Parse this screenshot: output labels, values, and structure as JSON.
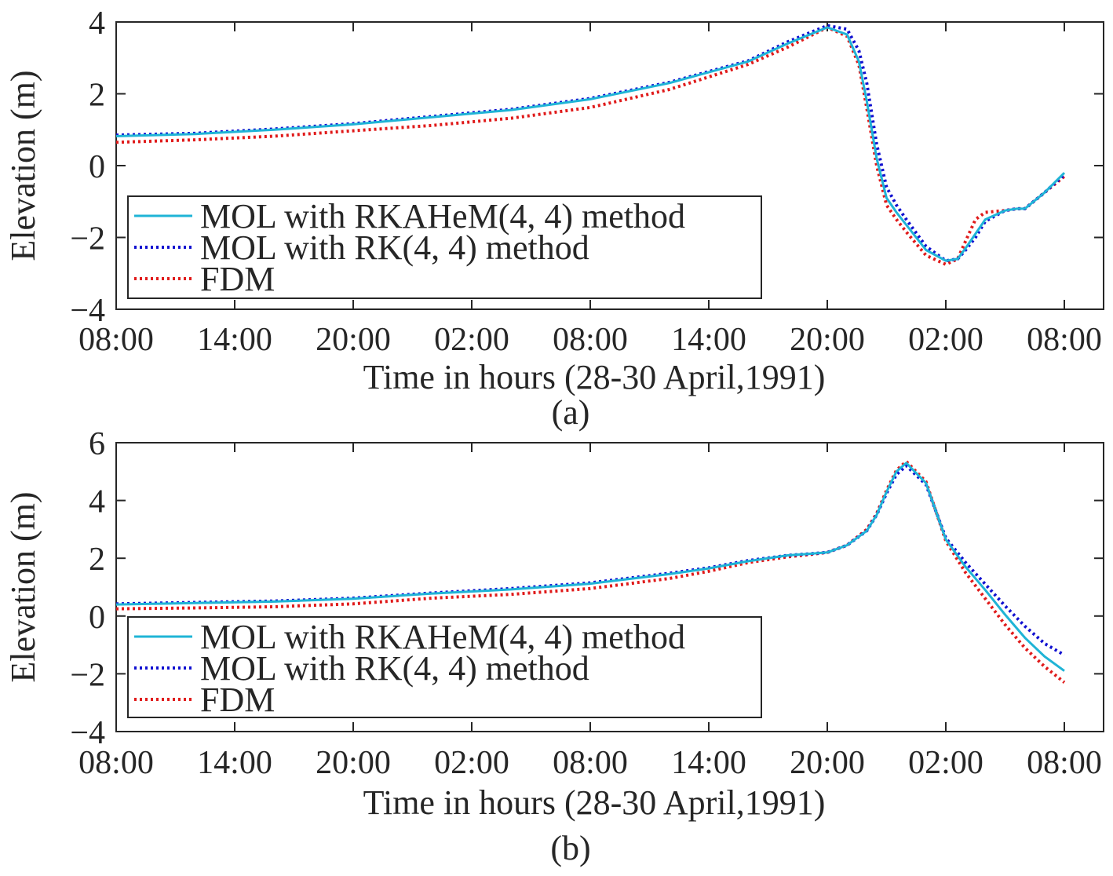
{
  "chart_data": [
    {
      "type": "line",
      "panel_label": "(a)",
      "xlabel": "Time in hours (28-30 April,1991)",
      "ylabel": "Elevation (m)",
      "xlim": [
        0,
        48
      ],
      "ylim": [
        -4,
        4
      ],
      "xtick_labels": [
        "08:00",
        "14:00",
        "20:00",
        "02:00",
        "08:00",
        "14:00",
        "20:00",
        "02:00",
        "08:00"
      ],
      "ytick_labels": [
        "−4",
        "−2",
        "0",
        "2",
        "4"
      ],
      "yticks": [
        -4,
        -2,
        0,
        2,
        4
      ],
      "grid": false,
      "legend_position": "bottom-left",
      "series": [
        {
          "name": "MOL with RKAHeM(4, 4) method",
          "color": "#1fb4d6",
          "style": "solid",
          "x": [
            0,
            4,
            8,
            12,
            16,
            20,
            24,
            28,
            32,
            34,
            36,
            37,
            37.6,
            38,
            38.5,
            39,
            39.5,
            40,
            41,
            42,
            42.6,
            43,
            43.5,
            44,
            45,
            45.6,
            46,
            47,
            48
          ],
          "y": [
            0.82,
            0.88,
            1.0,
            1.15,
            1.35,
            1.55,
            1.85,
            2.3,
            2.9,
            3.4,
            3.85,
            3.65,
            2.9,
            1.8,
            0.2,
            -0.9,
            -1.3,
            -1.65,
            -2.35,
            -2.65,
            -2.6,
            -2.3,
            -1.9,
            -1.5,
            -1.25,
            -1.2,
            -1.2,
            -0.75,
            -0.2
          ]
        },
        {
          "name": "MOL with RK(4, 4) method",
          "color": "#1010d0",
          "style": "dotted",
          "x": [
            0,
            4,
            8,
            12,
            16,
            20,
            24,
            28,
            32,
            34,
            36,
            37,
            37.6,
            38,
            38.5,
            39,
            39.5,
            40,
            41,
            42,
            42.6,
            43,
            43.5,
            44,
            45,
            45.6,
            46,
            47,
            48
          ],
          "y": [
            0.85,
            0.9,
            1.02,
            1.17,
            1.37,
            1.57,
            1.87,
            2.32,
            2.92,
            3.45,
            3.9,
            3.8,
            3.2,
            2.3,
            0.6,
            -0.6,
            -1.1,
            -1.5,
            -2.25,
            -2.65,
            -2.6,
            -2.35,
            -2.0,
            -1.55,
            -1.25,
            -1.2,
            -1.2,
            -0.75,
            -0.25
          ]
        },
        {
          "name": "FDM",
          "color": "#e01a1a",
          "style": "dotted",
          "x": [
            0,
            4,
            8,
            12,
            16,
            20,
            24,
            28,
            32,
            34,
            36,
            37,
            37.6,
            38,
            38.5,
            39,
            39.5,
            40,
            41,
            42,
            42.6,
            43,
            43.5,
            44,
            45,
            45.6,
            46,
            47,
            48
          ],
          "y": [
            0.65,
            0.72,
            0.82,
            0.97,
            1.12,
            1.32,
            1.62,
            2.12,
            2.82,
            3.3,
            3.85,
            3.6,
            2.8,
            1.6,
            0.0,
            -1.1,
            -1.5,
            -1.85,
            -2.5,
            -2.75,
            -2.6,
            -2.1,
            -1.5,
            -1.3,
            -1.25,
            -1.2,
            -1.2,
            -0.75,
            -0.3
          ]
        }
      ]
    },
    {
      "type": "line",
      "panel_label": "(b)",
      "xlabel": "Time in hours (28-30 April,1991)",
      "ylabel": "Elevation (m)",
      "xlim": [
        0,
        48
      ],
      "ylim": [
        -4,
        6
      ],
      "xtick_labels": [
        "08:00",
        "14:00",
        "20:00",
        "02:00",
        "08:00",
        "14:00",
        "20:00",
        "02:00",
        "08:00"
      ],
      "ytick_labels": [
        "−4",
        "−2",
        "0",
        "2",
        "4",
        "6"
      ],
      "yticks": [
        -4,
        -2,
        0,
        2,
        4,
        6
      ],
      "grid": false,
      "legend_position": "bottom-left",
      "series": [
        {
          "name": "MOL with RKAHeM(4, 4) method",
          "color": "#1fb4d6",
          "style": "solid",
          "x": [
            0,
            4,
            8,
            12,
            16,
            20,
            24,
            28,
            30,
            32,
            34,
            35,
            36,
            37,
            38,
            38.5,
            39,
            39.5,
            40,
            41,
            42,
            43,
            44,
            45,
            46,
            47,
            48
          ],
          "y": [
            0.4,
            0.45,
            0.5,
            0.6,
            0.78,
            0.92,
            1.12,
            1.45,
            1.65,
            1.9,
            2.1,
            2.15,
            2.2,
            2.45,
            2.95,
            3.5,
            4.3,
            5.0,
            5.3,
            4.6,
            2.65,
            1.7,
            0.9,
            0.05,
            -0.75,
            -1.4,
            -1.9
          ]
        },
        {
          "name": "MOL with RK(4, 4) method",
          "color": "#1010d0",
          "style": "dotted",
          "x": [
            0,
            4,
            8,
            12,
            16,
            20,
            24,
            28,
            30,
            32,
            34,
            35,
            36,
            37,
            38,
            38.5,
            39,
            39.5,
            40,
            41,
            42,
            43,
            44,
            45,
            46,
            47,
            48
          ],
          "y": [
            0.42,
            0.47,
            0.52,
            0.62,
            0.8,
            0.95,
            1.15,
            1.48,
            1.67,
            1.92,
            2.1,
            2.15,
            2.2,
            2.45,
            2.95,
            3.5,
            4.25,
            4.9,
            5.2,
            4.55,
            2.7,
            1.85,
            1.1,
            0.35,
            -0.35,
            -0.95,
            -1.35
          ]
        },
        {
          "name": "FDM",
          "color": "#e01a1a",
          "style": "dotted",
          "x": [
            0,
            4,
            8,
            12,
            16,
            20,
            24,
            28,
            30,
            32,
            34,
            35,
            36,
            37,
            38,
            38.5,
            39,
            39.5,
            40,
            41,
            42,
            43,
            44,
            45,
            46,
            47,
            48
          ],
          "y": [
            0.25,
            0.28,
            0.32,
            0.42,
            0.62,
            0.75,
            0.95,
            1.3,
            1.55,
            1.85,
            2.05,
            2.12,
            2.2,
            2.45,
            3.0,
            3.55,
            4.35,
            5.05,
            5.35,
            4.65,
            2.6,
            1.5,
            0.6,
            -0.3,
            -1.1,
            -1.75,
            -2.3
          ]
        }
      ]
    }
  ]
}
